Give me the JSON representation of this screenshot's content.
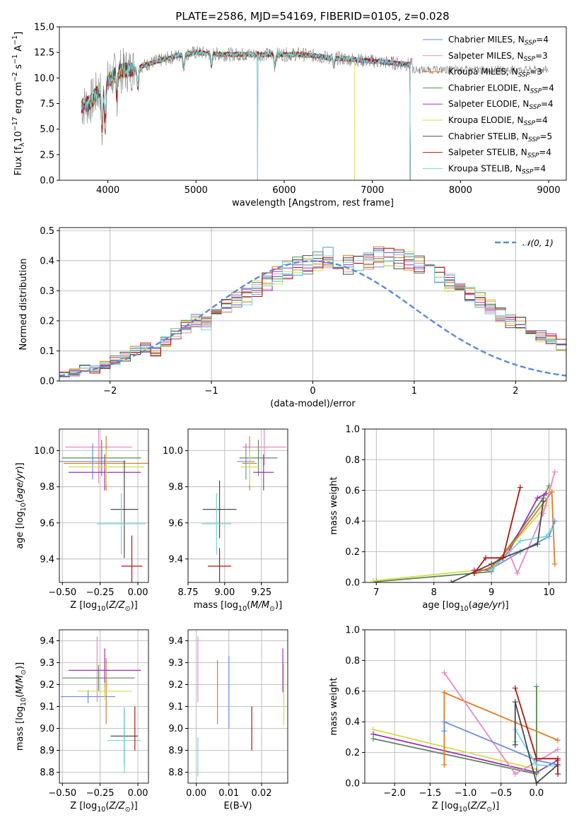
{
  "figure": {
    "title": "PLATE=2586, MJD=54169, FIBERID=0105, z=0.028"
  },
  "colors": {
    "CM": "#6a8ed8",
    "SM": "#e88ac0",
    "KM": "#e07b26",
    "CE": "#5a8a5a",
    "SE": "#a030b8",
    "KE": "#d4dc48",
    "CS": "#4a4a4a",
    "SS": "#b41414",
    "KS": "#70d8dc",
    "normal": "#5b8ad6",
    "spec_grey": "#808080"
  },
  "models": [
    {
      "key": "CM",
      "label": "Chabrier MILES, N",
      "nssp": "4"
    },
    {
      "key": "SM",
      "label": "Salpeter MILES, N",
      "nssp": "3"
    },
    {
      "key": "KM",
      "label": "Kroupa MILES, N",
      "nssp": "3"
    },
    {
      "key": "CE",
      "label": "Chabrier ELODIE, N",
      "nssp": "4"
    },
    {
      "key": "SE",
      "label": "Salpeter ELODIE, N",
      "nssp": "4"
    },
    {
      "key": "KE",
      "label": "Kroupa ELODIE, N",
      "nssp": "4"
    },
    {
      "key": "CS",
      "label": "Chabrier STELIB, N",
      "nssp": "5"
    },
    {
      "key": "SS",
      "label": "Salpeter STELIB, N",
      "nssp": "4"
    },
    {
      "key": "KS",
      "label": "Kroupa STELIB, N",
      "nssp": "4"
    }
  ],
  "chart_data": [
    {
      "id": "spectrum",
      "type": "line",
      "xlabel": "wavelength [Angstrom, rest frame]",
      "ylabel": "Flux [f_λ10^-17 erg cm^-2 s^-1 A^-1]",
      "xlim": [
        3450,
        9200
      ],
      "ylim": [
        0,
        15
      ],
      "xticks": [
        4000,
        5000,
        6000,
        7000,
        8000,
        9000
      ],
      "yticks": [
        0.0,
        2.5,
        5.0,
        7.5,
        10.0,
        12.5,
        15.0
      ],
      "grid": false,
      "legend_placement": "top-right",
      "continuum": [
        [
          3700,
          7.2
        ],
        [
          3800,
          7.6
        ],
        [
          3900,
          8.8
        ],
        [
          4000,
          9.6
        ],
        [
          4100,
          10.6
        ],
        [
          4300,
          10.9
        ],
        [
          4500,
          11.5
        ],
        [
          4800,
          12.2
        ],
        [
          5000,
          12.5
        ],
        [
          5300,
          12.3
        ],
        [
          5600,
          12.3
        ],
        [
          5900,
          12.3
        ],
        [
          6200,
          12.3
        ],
        [
          6500,
          12.0
        ],
        [
          6800,
          11.8
        ],
        [
          7200,
          11.5
        ],
        [
          7450,
          11.3
        ]
      ],
      "data_end_wavelength": {
        "KE": 6800,
        "SS": 7430,
        "KM": 7430,
        "default": 7430
      },
      "drops": [
        {
          "x": 5700,
          "series": [
            "KS",
            "SM"
          ],
          "to": 0
        },
        {
          "x": 6800,
          "series": [
            "KE"
          ],
          "to": 0
        },
        {
          "x": 7430,
          "series": [
            "SS",
            "KM"
          ],
          "to": 0
        }
      ]
    },
    {
      "id": "residuals",
      "type": "histogram",
      "xlabel": "(data-model)/error",
      "ylabel": "Normed distribution",
      "xlim": [
        -2.5,
        2.5
      ],
      "ylim": [
        0,
        0.51
      ],
      "xticks": [
        -2,
        -1,
        0,
        1,
        2
      ],
      "yticks": [
        0.0,
        0.1,
        0.2,
        0.3,
        0.4,
        0.5
      ],
      "grid": true,
      "legend": "N(0,1)",
      "legend_placement": "top-right",
      "bin_width": 0.1,
      "base_values": [
        0.02,
        0.03,
        0.04,
        0.04,
        0.05,
        0.07,
        0.08,
        0.1,
        0.11,
        0.1,
        0.13,
        0.16,
        0.18,
        0.2,
        0.19,
        0.22,
        0.25,
        0.27,
        0.28,
        0.31,
        0.33,
        0.35,
        0.37,
        0.38,
        0.39,
        0.4,
        0.41,
        0.4,
        0.39,
        0.39,
        0.4,
        0.41,
        0.41,
        0.4,
        0.4,
        0.39,
        0.38,
        0.36,
        0.33,
        0.3,
        0.29,
        0.27,
        0.25,
        0.22,
        0.2,
        0.19,
        0.17,
        0.15,
        0.14,
        0.12,
        0.1,
        0.09,
        0.07,
        0.06,
        0.05,
        0.04,
        0.04,
        0.03,
        0.03,
        0.03
      ]
    },
    {
      "id": "age_vs_Z",
      "type": "errorbar",
      "xlabel": "Z [log10(Z/Z⊙)]",
      "ylabel": "age [log10(age/yr)]",
      "xlim": [
        -0.52,
        0.07
      ],
      "ylim": [
        9.27,
        10.12
      ],
      "xticks": [
        -0.5,
        -0.25,
        0.0
      ],
      "yticks": [
        9.4,
        9.6,
        9.8,
        10.0
      ],
      "grid": true,
      "points": [
        {
          "s": "SM",
          "x": -0.26,
          "xe": 0.22,
          "y": 10.02,
          "ye": 0.2
        },
        {
          "s": "KM",
          "x": -0.21,
          "xe": 0.28,
          "y": 9.93,
          "ye": 0.15
        },
        {
          "s": "CM",
          "x": -0.3,
          "xe": 0.22,
          "y": 9.94,
          "ye": 0.1
        },
        {
          "s": "CE",
          "x": -0.24,
          "xe": 0.26,
          "y": 9.96,
          "ye": 0.1
        },
        {
          "s": "SE",
          "x": -0.22,
          "xe": 0.24,
          "y": 9.88,
          "ye": 0.1
        },
        {
          "s": "KE",
          "x": -0.21,
          "xe": 0.25,
          "y": 9.91,
          "ye": 0.1
        },
        {
          "s": "CS",
          "x": -0.09,
          "xe": 0.09,
          "y": 9.675,
          "ye": 0.27
        },
        {
          "s": "KS",
          "x": -0.11,
          "xe": 0.16,
          "y": 9.595,
          "ye": 0.17
        },
        {
          "s": "SS",
          "x": -0.04,
          "xe": 0.07,
          "y": 9.36,
          "ye": 0.17
        }
      ]
    },
    {
      "id": "age_vs_mass",
      "type": "errorbar",
      "xlabel": "mass [log10(M/M⊙)]",
      "ylabel": "",
      "xlim": [
        8.75,
        9.43
      ],
      "ylim": [
        9.27,
        10.12
      ],
      "xticks": [
        8.75,
        9.0,
        9.25
      ],
      "yticks": [
        9.4,
        9.6,
        9.8,
        10.0
      ],
      "grid": true,
      "points": [
        {
          "s": "SM",
          "x": 9.27,
          "xe": 0.15,
          "y": 10.02,
          "ye": 0.1
        },
        {
          "s": "KM",
          "x": 9.17,
          "xe": 0.05,
          "y": 9.93,
          "ye": 0.15
        },
        {
          "s": "CM",
          "x": 9.145,
          "xe": 0.06,
          "y": 9.94,
          "ye": 0.1
        },
        {
          "s": "CE",
          "x": 9.23,
          "xe": 0.13,
          "y": 9.96,
          "ye": 0.1
        },
        {
          "s": "SE",
          "x": 9.265,
          "xe": 0.07,
          "y": 9.88,
          "ye": 0.1
        },
        {
          "s": "KE",
          "x": 9.17,
          "xe": 0.06,
          "y": 9.91,
          "ye": 0.1
        },
        {
          "s": "CS",
          "x": 8.965,
          "xe": 0.115,
          "y": 9.675,
          "ye": 0.16
        },
        {
          "s": "KS",
          "x": 8.945,
          "xe": 0.1,
          "y": 9.595,
          "ye": 0.17
        },
        {
          "s": "SS",
          "x": 8.965,
          "xe": 0.08,
          "y": 9.36,
          "ye": 0.1
        }
      ]
    },
    {
      "id": "mass_weight_vs_age",
      "type": "line",
      "xlabel": "age [log10(age/yr)]",
      "ylabel": "mass weight",
      "xlim": [
        6.8,
        10.3
      ],
      "ylim": [
        0,
        1.0
      ],
      "xticks": [
        7,
        8,
        9,
        10
      ],
      "yticks": [
        0.0,
        0.2,
        0.4,
        0.6,
        0.8,
        1.0
      ],
      "grid": true,
      "series": [
        {
          "s": "CE",
          "x": [
            7.0,
            9.0,
            9.9,
            10.0
          ],
          "y": [
            0.005,
            0.07,
            0.55,
            0.63
          ]
        },
        {
          "s": "KE",
          "x": [
            6.95,
            9.0,
            9.95,
            10.0
          ],
          "y": [
            0.01,
            0.09,
            0.5,
            0.6
          ]
        },
        {
          "s": "SE",
          "x": [
            8.7,
            9.0,
            9.3,
            9.8,
            9.95
          ],
          "y": [
            0.08,
            0.08,
            0.2,
            0.55,
            0.58
          ]
        },
        {
          "s": "KM",
          "x": [
            8.7,
            9.0,
            9.3,
            10.05,
            10.1
          ],
          "y": [
            0.06,
            0.1,
            0.22,
            0.59,
            0.12
          ]
        },
        {
          "s": "CM",
          "x": [
            9.0,
            9.5,
            10.0,
            10.1
          ],
          "y": [
            0.09,
            0.2,
            0.3,
            0.4
          ]
        },
        {
          "s": "SM",
          "x": [
            9.3,
            9.45,
            9.9,
            10.1
          ],
          "y": [
            0.2,
            0.06,
            0.45,
            0.72
          ]
        },
        {
          "s": "KS",
          "x": [
            9.0,
            9.5,
            9.95,
            10.05
          ],
          "y": [
            0.08,
            0.27,
            0.3,
            0.35
          ]
        },
        {
          "s": "CS",
          "x": [
            8.3,
            9.0,
            9.2,
            9.8,
            9.9
          ],
          "y": [
            0.0,
            0.12,
            0.16,
            0.25,
            0.53
          ]
        },
        {
          "s": "SS",
          "x": [
            8.7,
            8.9,
            9.2,
            9.5
          ],
          "y": [
            0.06,
            0.16,
            0.16,
            0.62
          ]
        }
      ]
    },
    {
      "id": "mass_vs_Z",
      "type": "errorbar",
      "xlabel": "Z [log10(Z/Z⊙)]",
      "ylabel": "mass [log10(M/M⊙)]",
      "xlim": [
        -0.52,
        0.07
      ],
      "ylim": [
        8.75,
        9.45
      ],
      "xticks": [
        -0.5,
        -0.25,
        0.0
      ],
      "yticks": [
        8.8,
        8.9,
        9.0,
        9.1,
        9.2,
        9.3,
        9.4
      ],
      "grid": true,
      "points": [
        {
          "s": "SM",
          "x": -0.27,
          "xe": 0.0,
          "y": 9.27,
          "ye": 0.15
        },
        {
          "s": "KM",
          "x": -0.21,
          "xe": 0.0,
          "y": 9.17,
          "ye": 0.15
        },
        {
          "s": "CM",
          "x": -0.33,
          "xe": 0.18,
          "y": 9.145,
          "ye": 0.03
        },
        {
          "s": "CE",
          "x": -0.26,
          "xe": 0.24,
          "y": 9.23,
          "ye": 0.06
        },
        {
          "s": "SE",
          "x": -0.22,
          "xe": 0.24,
          "y": 9.265,
          "ye": 0.1
        },
        {
          "s": "KE",
          "x": -0.22,
          "xe": 0.18,
          "y": 9.17,
          "ye": 0.04
        },
        {
          "s": "CS",
          "x": -0.09,
          "xe": 0.09,
          "y": 8.965,
          "ye": 0.13
        },
        {
          "s": "KS",
          "x": -0.09,
          "xe": 0.11,
          "y": 8.945,
          "ye": 0.15
        },
        {
          "s": "SS",
          "x": -0.02,
          "xe": 0.0,
          "y": 9.0,
          "ye": 0.1
        }
      ]
    },
    {
      "id": "mass_vs_ebv",
      "type": "errorbar",
      "xlabel": "E(B-V)",
      "ylabel": "",
      "xlim": [
        -0.0025,
        0.028
      ],
      "ylim": [
        8.75,
        9.45
      ],
      "xticks": [
        0.0,
        0.01,
        0.02
      ],
      "yticks": [
        8.8,
        8.9,
        9.0,
        9.1,
        9.2,
        9.3,
        9.4
      ],
      "grid": true,
      "points": [
        {
          "s": "SM",
          "x": 0.0005,
          "y": 9.27,
          "ye": 0.15
        },
        {
          "s": "KM",
          "x": 0.0065,
          "y": 9.165,
          "ye": 0.145
        },
        {
          "s": "CM",
          "x": 0.01,
          "y": 9.165,
          "ye": 0.165
        },
        {
          "s": "SS",
          "x": 0.017,
          "y": 9.0,
          "ye": 0.1
        },
        {
          "s": "SE",
          "x": 0.0265,
          "y": 9.265,
          "ye": 0.1
        },
        {
          "s": "KE",
          "x": 0.0268,
          "y": 9.155,
          "ye": 0.14
        },
        {
          "s": "KS",
          "x": 0.0005,
          "y": 8.87,
          "ye": 0.09
        }
      ]
    },
    {
      "id": "mass_weight_vs_Z",
      "type": "line",
      "xlabel": "Z [log10(Z/Z⊙)]",
      "ylabel": "mass weight",
      "xlim": [
        -2.42,
        0.42
      ],
      "ylim": [
        0,
        1.0
      ],
      "xticks": [
        -2.0,
        -1.5,
        -1.0,
        -0.5,
        0.0
      ],
      "yticks": [
        0.0,
        0.2,
        0.4,
        0.6,
        0.8,
        1.0
      ],
      "grid": true,
      "series": [
        {
          "s": "KE",
          "x": [
            -2.3,
            0.0,
            0.0
          ],
          "y": [
            0.35,
            0.09,
            0.6
          ]
        },
        {
          "s": "SE",
          "x": [
            -2.3,
            0.0,
            0.3
          ],
          "y": [
            0.32,
            0.07,
            0.15
          ]
        },
        {
          "s": "CE",
          "x": [
            -2.3,
            0.0,
            0.0
          ],
          "y": [
            0.29,
            0.06,
            0.63
          ]
        },
        {
          "s": "KM",
          "x": [
            -1.3,
            -1.3,
            0.3
          ],
          "y": [
            0.12,
            0.59,
            0.28
          ]
        },
        {
          "s": "SM",
          "x": [
            -1.3,
            -0.3,
            0.3
          ],
          "y": [
            0.72,
            0.06,
            0.22
          ]
        },
        {
          "s": "CM",
          "x": [
            -1.3,
            -1.3,
            0.0,
            0.3
          ],
          "y": [
            0.34,
            0.4,
            0.15,
            0.12
          ]
        },
        {
          "s": "KS",
          "x": [
            -0.3,
            -0.3,
            0.0,
            0.3
          ],
          "y": [
            0.27,
            0.35,
            0.12,
            0.11
          ]
        },
        {
          "s": "CS",
          "x": [
            -0.3,
            -0.3,
            0.0,
            0.3
          ],
          "y": [
            0.25,
            0.53,
            0.0,
            0.12
          ]
        },
        {
          "s": "SS",
          "x": [
            -0.3,
            0.0,
            0.3,
            0.3
          ],
          "y": [
            0.62,
            0.16,
            0.16,
            0.06
          ]
        }
      ]
    }
  ]
}
